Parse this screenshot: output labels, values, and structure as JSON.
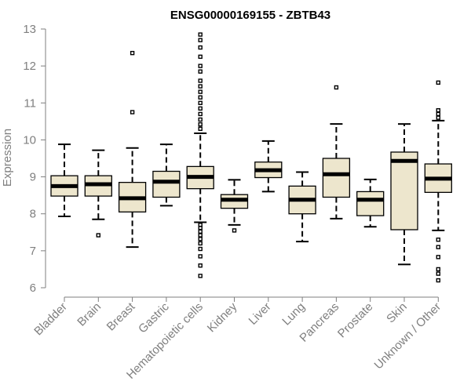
{
  "chart_data": {
    "type": "boxplot",
    "title": "ENSG00000169155 - ZBTB43",
    "ylabel": "Expression",
    "xlabel": "",
    "ylim": [
      6,
      13
    ],
    "yticks": [
      6,
      7,
      8,
      9,
      10,
      11,
      12,
      13
    ],
    "box_color": "#EDE6CD",
    "categories": [
      "Bladder",
      "Brain",
      "Breast",
      "Gastric",
      "Hematopoietic cells",
      "Kidney",
      "Liver",
      "Lung",
      "Pancreas",
      "Prostate",
      "Skin",
      "Unknown / Other"
    ],
    "series": [
      {
        "category": "Bladder",
        "whisker_low": 7.93,
        "q1": 8.48,
        "median": 8.75,
        "q3": 9.03,
        "whisker_high": 9.88,
        "outliers": []
      },
      {
        "category": "Brain",
        "whisker_low": 7.85,
        "q1": 8.48,
        "median": 8.8,
        "q3": 9.03,
        "whisker_high": 9.72,
        "outliers": [
          7.42
        ]
      },
      {
        "category": "Breast",
        "whisker_low": 7.1,
        "q1": 8.05,
        "median": 8.42,
        "q3": 8.85,
        "whisker_high": 9.78,
        "outliers": [
          10.75,
          12.35
        ]
      },
      {
        "category": "Gastric",
        "whisker_low": 8.22,
        "q1": 8.45,
        "median": 8.87,
        "q3": 9.15,
        "whisker_high": 9.88,
        "outliers": []
      },
      {
        "category": "Hematopoietic cells",
        "whisker_low": 7.77,
        "q1": 8.68,
        "median": 9.0,
        "q3": 9.28,
        "whisker_high": 10.18,
        "outliers": [
          6.32,
          6.6,
          6.85,
          7.05,
          7.2,
          7.32,
          7.42,
          7.52,
          7.62,
          7.7,
          10.3,
          10.42,
          10.55,
          10.7,
          10.85,
          11.0,
          11.15,
          11.3,
          11.45,
          11.6,
          11.85,
          12.0,
          12.25,
          12.5,
          12.7,
          12.85
        ]
      },
      {
        "category": "Kidney",
        "whisker_low": 7.7,
        "q1": 8.15,
        "median": 8.38,
        "q3": 8.52,
        "whisker_high": 8.92,
        "outliers": [
          7.55
        ]
      },
      {
        "category": "Liver",
        "whisker_low": 8.6,
        "q1": 8.98,
        "median": 9.18,
        "q3": 9.4,
        "whisker_high": 9.97,
        "outliers": []
      },
      {
        "category": "Lung",
        "whisker_low": 7.25,
        "q1": 8.0,
        "median": 8.38,
        "q3": 8.75,
        "whisker_high": 9.13,
        "outliers": []
      },
      {
        "category": "Pancreas",
        "whisker_low": 7.87,
        "q1": 8.45,
        "median": 9.07,
        "q3": 9.5,
        "whisker_high": 10.43,
        "outliers": [
          11.42
        ]
      },
      {
        "category": "Prostate",
        "whisker_low": 7.65,
        "q1": 7.95,
        "median": 8.38,
        "q3": 8.6,
        "whisker_high": 8.93,
        "outliers": []
      },
      {
        "category": "Skin",
        "whisker_low": 6.63,
        "q1": 7.57,
        "median": 9.43,
        "q3": 9.67,
        "whisker_high": 10.43,
        "outliers": []
      },
      {
        "category": "Unknown / Other",
        "whisker_low": 7.55,
        "q1": 8.58,
        "median": 8.95,
        "q3": 9.35,
        "whisker_high": 10.52,
        "outliers": [
          6.2,
          6.38,
          6.5,
          6.83,
          7.1,
          7.3,
          10.6,
          10.7,
          10.8,
          11.55
        ]
      }
    ]
  }
}
